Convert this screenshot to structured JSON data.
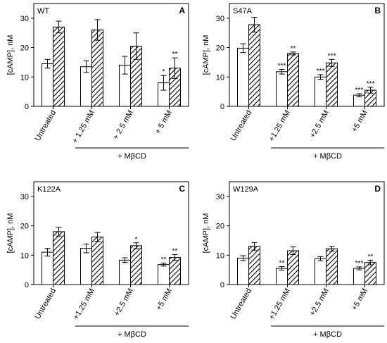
{
  "colors": {
    "untreated_fill": "#ffffff",
    "treated_fill": "hatched-diagonal",
    "stroke": "#000000"
  },
  "chart_data": [
    {
      "type": "bar",
      "panel_label": "WT",
      "panel_letter": "A",
      "ylabel": "[cAMP], nM",
      "ylim": [
        0,
        35
      ],
      "yticks": [
        0,
        10,
        20,
        30
      ],
      "categories": [
        "Untreated",
        "+ 1.25 mM",
        "+ 2.5 mM",
        "+ 5 mM"
      ],
      "group_label": "+ MβCD",
      "series": [
        {
          "values": [
            14.5,
            13.5,
            14.0,
            8.0
          ],
          "errors": [
            1.5,
            2.0,
            3.0,
            2.5
          ],
          "sig": [
            "",
            "",
            "",
            "*"
          ]
        },
        {
          "values": [
            27.0,
            26.0,
            20.5,
            13.0
          ],
          "errors": [
            2.0,
            3.5,
            4.5,
            3.5
          ],
          "sig": [
            "",
            "",
            "",
            "**"
          ]
        }
      ]
    },
    {
      "type": "bar",
      "panel_label": "S47A",
      "panel_letter": "B",
      "ylabel": "[cAMP], nM",
      "ylim": [
        0,
        35
      ],
      "yticks": [
        0,
        10,
        20,
        30
      ],
      "categories": [
        "Untreated",
        "+1.25 mM",
        "+2.5 mM",
        "+5 mM"
      ],
      "group_label": "+ MβCD",
      "series": [
        {
          "values": [
            19.8,
            11.8,
            10.0,
            3.8
          ],
          "errors": [
            1.5,
            0.8,
            0.8,
            0.5
          ],
          "sig": [
            "",
            "***",
            "***",
            "***"
          ]
        },
        {
          "values": [
            27.8,
            18.0,
            14.8,
            5.5
          ],
          "errors": [
            2.5,
            0.5,
            1.2,
            1.0
          ],
          "sig": [
            "",
            "**",
            "***",
            "***"
          ]
        }
      ]
    },
    {
      "type": "bar",
      "panel_label": "K122A",
      "panel_letter": "C",
      "ylabel": "[cAMP], nM",
      "ylim": [
        0,
        35
      ],
      "yticks": [
        0,
        10,
        20,
        30
      ],
      "categories": [
        "Untreated",
        "+1.25 mM",
        "+2.5 mM",
        "+5 mM"
      ],
      "group_label": "+ MβCD",
      "series": [
        {
          "values": [
            11.0,
            12.3,
            8.3,
            6.8
          ],
          "errors": [
            1.3,
            1.5,
            0.8,
            0.5
          ],
          "sig": [
            "",
            "",
            "",
            "**"
          ]
        },
        {
          "values": [
            18.0,
            16.2,
            13.2,
            9.2
          ],
          "errors": [
            1.5,
            1.5,
            1.0,
            1.0
          ],
          "sig": [
            "",
            "",
            "*",
            "**"
          ]
        }
      ]
    },
    {
      "type": "bar",
      "panel_label": "W129A",
      "panel_letter": "D",
      "ylabel": "[cAMP], nM",
      "ylim": [
        0,
        35
      ],
      "yticks": [
        0,
        10,
        20,
        30
      ],
      "categories": [
        "Untreated",
        "+1.25 mM",
        "+2.5 mM",
        "+5 mM"
      ],
      "group_label": "+ MβCD",
      "series": [
        {
          "values": [
            9.0,
            5.5,
            8.8,
            5.5
          ],
          "errors": [
            0.8,
            0.6,
            0.7,
            0.5
          ],
          "sig": [
            "",
            "**",
            "",
            "***"
          ]
        },
        {
          "values": [
            13.0,
            11.5,
            12.2,
            7.5
          ],
          "errors": [
            1.3,
            1.3,
            0.8,
            0.8
          ],
          "sig": [
            "",
            "",
            "",
            "**"
          ]
        }
      ]
    }
  ]
}
